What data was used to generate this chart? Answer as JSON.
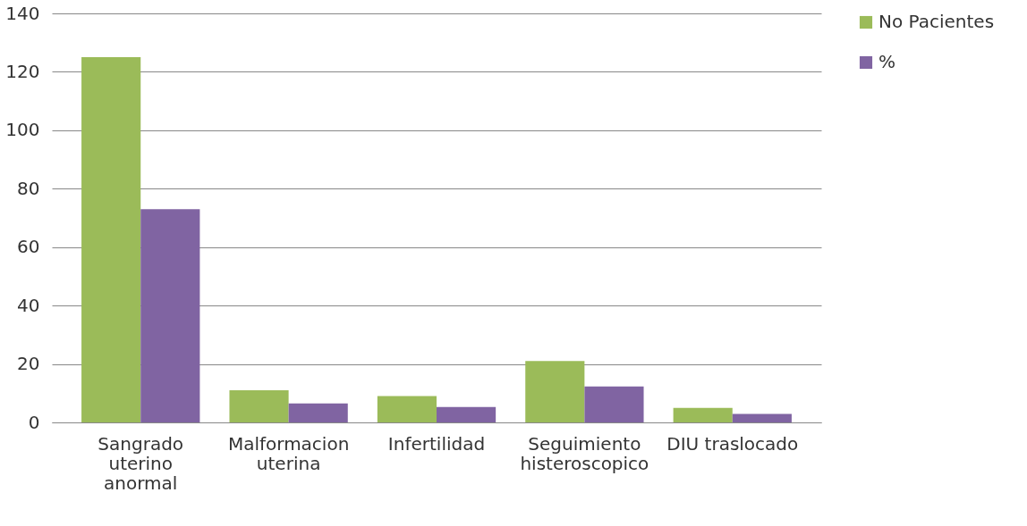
{
  "chart_data": {
    "type": "bar",
    "categories": [
      "Sangrado uterino anormal",
      "Malformacion uterina",
      "Infertilidad",
      "Seguimiento histeroscopico",
      "DIU traslocado"
    ],
    "series": [
      {
        "name": "No Pacientes",
        "color": "#9bbb59",
        "values": [
          125,
          11,
          9,
          21,
          5
        ]
      },
      {
        "name": "%",
        "color": "#8064a2",
        "values": [
          73,
          6.5,
          5.3,
          12.3,
          2.9
        ]
      }
    ],
    "ylim": [
      0,
      140
    ],
    "yticks": [
      0,
      20,
      40,
      60,
      80,
      100,
      120,
      140
    ],
    "grid": "y",
    "legend": "right"
  }
}
